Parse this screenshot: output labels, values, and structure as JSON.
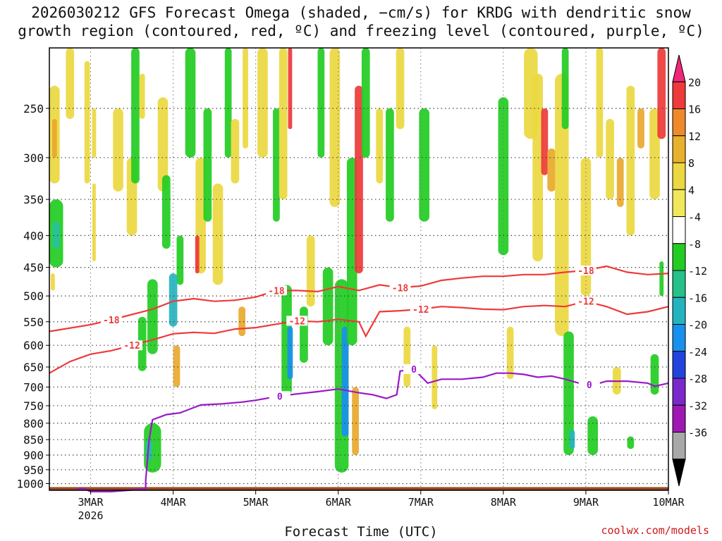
{
  "title_line1": "2026030212 GFS Forecast Omega (shaded, −cm/s) for KRDG with dendritic snow",
  "title_line2": "growth region (contoured, red, ºC) and freezing level (contoured, purple, ºC)",
  "credit": "coolwx.com/models",
  "chart_data": {
    "type": "heatmap",
    "title": "2026030212 GFS Forecast Omega (shaded, −cm/s) for KRDG with dendritic snow growth region (contoured, red, ºC) and freezing level (contoured, purple, ºC)",
    "xlabel": "Forecast Time (UTC)",
    "ylabel": "",
    "x_ticks": [
      {
        "label": "3MAR",
        "sublabel": "2026",
        "hours": 12
      },
      {
        "label": "4MAR",
        "hours": 36
      },
      {
        "label": "5MAR",
        "hours": 60
      },
      {
        "label": "6MAR",
        "hours": 84
      },
      {
        "label": "7MAR",
        "hours": 108
      },
      {
        "label": "8MAR",
        "hours": 132
      },
      {
        "label": "9MAR",
        "hours": 156
      },
      {
        "label": "10MAR",
        "hours": 180
      }
    ],
    "xlim_hours": [
      0,
      180
    ],
    "y_axis": "pressure (hPa), log scale, reversed",
    "y_ticks": [
      250,
      300,
      350,
      400,
      450,
      500,
      550,
      600,
      650,
      700,
      750,
      800,
      850,
      900,
      950,
      1000
    ],
    "ylim": [
      1025,
      200
    ],
    "grid": true,
    "colorbar": {
      "levels": [
        20,
        16,
        12,
        8,
        4,
        -4,
        -8,
        -12,
        -16,
        -20,
        -24,
        -28,
        -32,
        -36
      ],
      "colors": [
        "#f0287a",
        "#ee3a3a",
        "#ee8a2a",
        "#e8b02c",
        "#ecd840",
        "#f0e85a",
        "#ffffff",
        "#22cc22",
        "#26c08a",
        "#24b4c0",
        "#1890ee",
        "#2244dd",
        "#7a28cc",
        "#a018b4",
        "#a8a8a8",
        "#000000"
      ]
    },
    "contours": [
      {
        "name": "-18",
        "color": "#ee3a3a",
        "label": "-18",
        "points": [
          [
            0,
            570
          ],
          [
            12,
            556
          ],
          [
            18,
            546
          ],
          [
            30,
            525
          ],
          [
            36,
            510
          ],
          [
            42,
            505
          ],
          [
            48,
            510
          ],
          [
            54,
            508
          ],
          [
            60,
            502
          ],
          [
            66,
            490
          ],
          [
            72,
            490
          ],
          [
            78,
            492
          ],
          [
            84,
            483
          ],
          [
            90,
            490
          ],
          [
            96,
            480
          ],
          [
            102,
            485
          ],
          [
            108,
            482
          ],
          [
            114,
            472
          ],
          [
            120,
            468
          ],
          [
            126,
            465
          ],
          [
            132,
            465
          ],
          [
            138,
            462
          ],
          [
            144,
            462
          ],
          [
            150,
            458
          ],
          [
            156,
            455
          ],
          [
            162,
            448
          ],
          [
            168,
            458
          ],
          [
            174,
            462
          ],
          [
            180,
            460
          ]
        ],
        "label_hours": [
          18,
          66,
          102,
          156
        ]
      },
      {
        "name": "-12",
        "color": "#ee3a3a",
        "label": "-12",
        "points": [
          [
            0,
            665
          ],
          [
            6,
            637
          ],
          [
            12,
            620
          ],
          [
            18,
            612
          ],
          [
            24,
            600
          ],
          [
            30,
            588
          ],
          [
            36,
            575
          ],
          [
            42,
            572
          ],
          [
            48,
            574
          ],
          [
            54,
            565
          ],
          [
            60,
            562
          ],
          [
            66,
            555
          ],
          [
            72,
            548
          ],
          [
            78,
            550
          ],
          [
            84,
            545
          ],
          [
            90,
            550
          ],
          [
            92,
            580
          ],
          [
            96,
            530
          ],
          [
            102,
            528
          ],
          [
            108,
            525
          ],
          [
            114,
            520
          ],
          [
            120,
            522
          ],
          [
            126,
            525
          ],
          [
            132,
            526
          ],
          [
            138,
            520
          ],
          [
            144,
            518
          ],
          [
            150,
            520
          ],
          [
            156,
            510
          ],
          [
            162,
            520
          ],
          [
            168,
            535
          ],
          [
            174,
            530
          ],
          [
            180,
            520
          ]
        ],
        "label_hours": [
          24,
          72,
          108,
          156
        ]
      },
      {
        "name": "0",
        "color": "#9a18c8",
        "label": "0",
        "points": [
          [
            8,
            1020
          ],
          [
            10,
            1018
          ],
          [
            12,
            1030
          ],
          [
            18,
            1030
          ],
          [
            28,
            1020
          ],
          [
            28,
            990
          ],
          [
            29,
            850
          ],
          [
            30,
            790
          ],
          [
            34,
            775
          ],
          [
            38,
            770
          ],
          [
            44,
            748
          ],
          [
            50,
            745
          ],
          [
            56,
            740
          ],
          [
            60,
            735
          ],
          [
            66,
            725
          ],
          [
            72,
            718
          ],
          [
            78,
            712
          ],
          [
            84,
            705
          ],
          [
            90,
            715
          ],
          [
            94,
            720
          ],
          [
            98,
            730
          ],
          [
            101,
            720
          ],
          [
            102,
            660
          ],
          [
            106,
            655
          ],
          [
            110,
            690
          ],
          [
            114,
            680
          ],
          [
            120,
            680
          ],
          [
            126,
            675
          ],
          [
            130,
            665
          ],
          [
            134,
            665
          ],
          [
            138,
            668
          ],
          [
            142,
            675
          ],
          [
            146,
            672
          ],
          [
            150,
            680
          ],
          [
            154,
            690
          ],
          [
            158,
            695
          ],
          [
            162,
            685
          ],
          [
            168,
            685
          ],
          [
            174,
            690
          ],
          [
            176,
            698
          ],
          [
            180,
            690
          ]
        ],
        "label_hours": [
          67,
          106,
          157
        ]
      }
    ],
    "shading_regions_note": "omega cells shown qualitatively: yellow/orange/red = -cm/s positive (ascent), green/teal/blue = negative (descent)"
  }
}
